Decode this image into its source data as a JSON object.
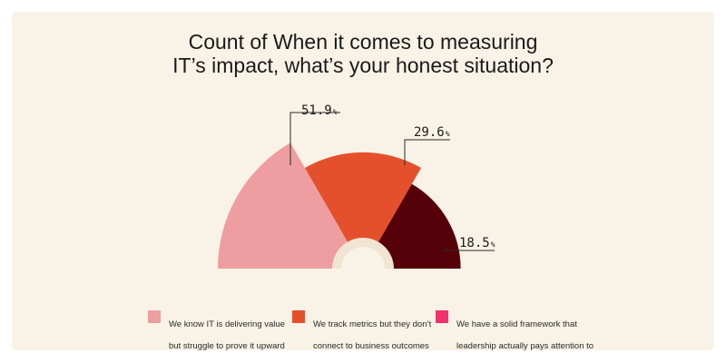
{
  "title_lines": [
    "Count of When it comes to measuring",
    "IT’s impact, what’s your honest situation?"
  ],
  "chart_data": {
    "type": "pie",
    "variant": "nightingale-rose-half",
    "title": "Count of When it comes to measuring IT’s impact, what’s your honest situation?",
    "categories": [
      "We know IT is delivering value but struggle to prove it upward",
      "We track metrics but they don’t connect to business outcomes",
      "We have a solid framework that leadership actually pays attention to"
    ],
    "values": [
      51.9,
      29.6,
      18.5
    ],
    "value_suffix": "%",
    "colors": [
      "#ee9ea0",
      "#e5502c",
      "#550009"
    ],
    "legend_placement": "bottom",
    "legend_colors": [
      "#ee9ea0",
      "#e5502c",
      "#f0316b"
    ]
  },
  "legend": [
    {
      "lines": [
        "We know IT is delivering value",
        "but struggle to prove it upward"
      ],
      "color": "#ee9ea0"
    },
    {
      "lines": [
        "We track metrics but they don’t",
        "connect to business outcomes"
      ],
      "color": "#e5502c"
    },
    {
      "lines": [
        "We have a solid framework that",
        "leadership actually pays attention to"
      ],
      "color": "#f0316b"
    }
  ],
  "labels": [
    "51.9",
    "29.6",
    "18.5"
  ],
  "label_suffix": "%"
}
